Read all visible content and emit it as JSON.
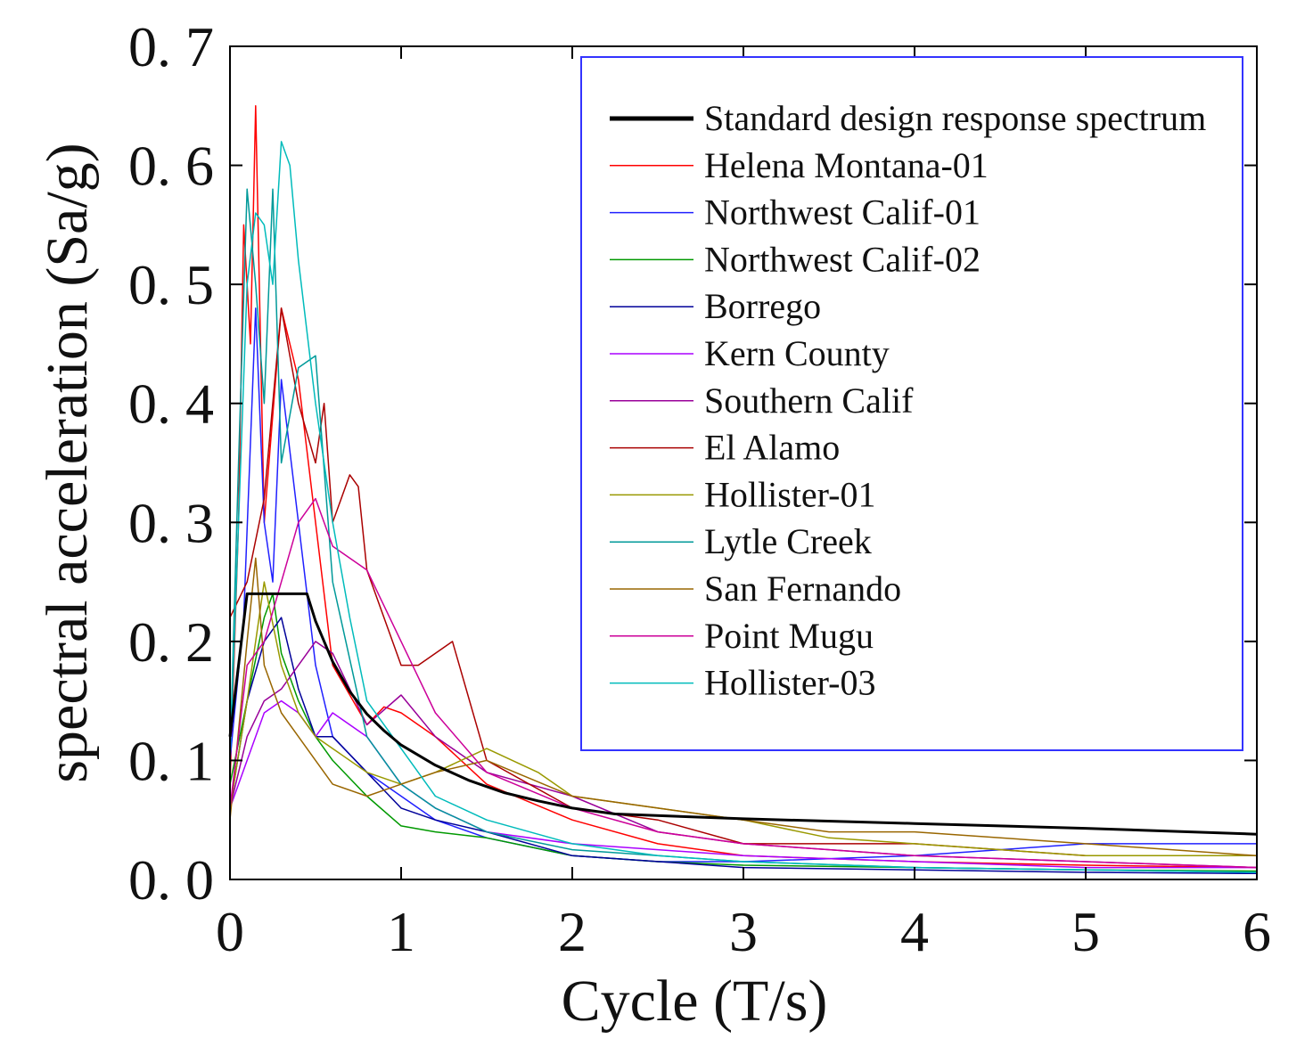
{
  "chart_data": {
    "type": "line",
    "title": "",
    "xlabel": "Cycle (T/s)",
    "ylabel": "spectral acceleration (Sa/g)",
    "xlim": [
      0,
      6
    ],
    "ylim": [
      0,
      0.7
    ],
    "xticks": [
      0,
      1,
      2,
      3,
      4,
      5,
      6
    ],
    "xtick_labels": [
      "0",
      "1",
      "2",
      "3",
      "4",
      "5",
      "6"
    ],
    "yticks": [
      0,
      0.1,
      0.2,
      0.3,
      0.4,
      0.5,
      0.6,
      0.7
    ],
    "ytick_labels": [
      "0. 0",
      "0. 1",
      "0. 2",
      "0. 3",
      "0. 4",
      "0. 5",
      "0. 6",
      "0. 7"
    ],
    "grid": false,
    "legend_position": "top-right",
    "series": [
      {
        "name": "Standard design response spectrum",
        "color": "#000000",
        "width": 3,
        "x": [
          0,
          0.1,
          0.45,
          0.5,
          0.6,
          0.7,
          0.8,
          0.9,
          1.0,
          1.2,
          1.4,
          1.6,
          1.8,
          2.0,
          2.25,
          3,
          4,
          5,
          6
        ],
        "y": [
          0.12,
          0.24,
          0.24,
          0.217,
          0.183,
          0.158,
          0.139,
          0.125,
          0.113,
          0.096,
          0.083,
          0.073,
          0.066,
          0.06,
          0.055,
          0.051,
          0.047,
          0.043,
          0.038
        ]
      },
      {
        "name": "Helena Montana-01",
        "color": "#ff0000",
        "width": 1.5,
        "x": [
          0,
          0.05,
          0.08,
          0.12,
          0.15,
          0.2,
          0.3,
          0.4,
          0.5,
          0.6,
          0.8,
          0.9,
          1.0,
          1.2,
          1.5,
          2,
          2.5,
          3,
          4,
          5,
          6
        ],
        "y": [
          0.08,
          0.3,
          0.55,
          0.45,
          0.65,
          0.3,
          0.48,
          0.42,
          0.3,
          0.18,
          0.13,
          0.145,
          0.14,
          0.12,
          0.08,
          0.05,
          0.03,
          0.02,
          0.015,
          0.012,
          0.01
        ]
      },
      {
        "name": "Northwest Calif-01",
        "color": "#2020ff",
        "width": 1.5,
        "x": [
          0,
          0.08,
          0.15,
          0.2,
          0.25,
          0.3,
          0.4,
          0.5,
          0.6,
          0.8,
          1.0,
          1.2,
          1.5,
          2,
          2.5,
          3,
          4,
          5,
          6
        ],
        "y": [
          0.1,
          0.22,
          0.48,
          0.3,
          0.25,
          0.42,
          0.3,
          0.18,
          0.12,
          0.09,
          0.07,
          0.05,
          0.035,
          0.02,
          0.015,
          0.015,
          0.02,
          0.03,
          0.03
        ]
      },
      {
        "name": "Northwest Calif-02",
        "color": "#009900",
        "width": 1.5,
        "x": [
          0,
          0.1,
          0.2,
          0.25,
          0.3,
          0.4,
          0.5,
          0.6,
          0.8,
          1.0,
          1.2,
          1.5,
          2,
          2.5,
          3,
          4,
          5,
          6
        ],
        "y": [
          0.08,
          0.15,
          0.22,
          0.24,
          0.19,
          0.15,
          0.12,
          0.1,
          0.07,
          0.045,
          0.04,
          0.035,
          0.02,
          0.015,
          0.012,
          0.01,
          0.008,
          0.007
        ]
      },
      {
        "name": "Borrego",
        "color": "#000099",
        "width": 1.5,
        "x": [
          0,
          0.1,
          0.2,
          0.3,
          0.4,
          0.5,
          0.6,
          0.8,
          1.0,
          1.2,
          1.5,
          2,
          3,
          4,
          5,
          6
        ],
        "y": [
          0.06,
          0.15,
          0.2,
          0.22,
          0.16,
          0.12,
          0.12,
          0.09,
          0.06,
          0.05,
          0.04,
          0.02,
          0.01,
          0.008,
          0.006,
          0.005
        ]
      },
      {
        "name": "Kern County",
        "color": "#aa00ff",
        "width": 1.5,
        "x": [
          0,
          0.1,
          0.2,
          0.3,
          0.4,
          0.5,
          0.6,
          0.8,
          1.0,
          1.2,
          1.5,
          2,
          3,
          4,
          5,
          6
        ],
        "y": [
          0.06,
          0.1,
          0.14,
          0.15,
          0.14,
          0.12,
          0.14,
          0.12,
          0.08,
          0.06,
          0.04,
          0.03,
          0.02,
          0.015,
          0.01,
          0.01
        ]
      },
      {
        "name": "Southern Calif",
        "color": "#990099",
        "width": 1.5,
        "x": [
          0,
          0.1,
          0.2,
          0.3,
          0.4,
          0.5,
          0.6,
          0.8,
          1.0,
          1.2,
          1.5,
          2,
          2.5,
          3,
          4,
          5,
          6
        ],
        "y": [
          0.06,
          0.12,
          0.15,
          0.16,
          0.18,
          0.2,
          0.19,
          0.13,
          0.155,
          0.12,
          0.09,
          0.07,
          0.04,
          0.03,
          0.02,
          0.015,
          0.01
        ]
      },
      {
        "name": "El Alamo",
        "color": "#aa0000",
        "width": 1.5,
        "x": [
          0,
          0.1,
          0.2,
          0.3,
          0.4,
          0.5,
          0.55,
          0.6,
          0.7,
          0.75,
          0.8,
          1.0,
          1.1,
          1.3,
          1.5,
          2,
          2.5,
          3,
          4,
          5,
          6
        ],
        "y": [
          0.22,
          0.25,
          0.32,
          0.48,
          0.4,
          0.35,
          0.4,
          0.3,
          0.34,
          0.33,
          0.26,
          0.18,
          0.18,
          0.2,
          0.1,
          0.06,
          0.05,
          0.03,
          0.03,
          0.02,
          0.02
        ]
      },
      {
        "name": "Hollister-01",
        "color": "#999900",
        "width": 1.5,
        "x": [
          0,
          0.1,
          0.2,
          0.3,
          0.4,
          0.5,
          0.6,
          0.8,
          1.0,
          1.2,
          1.5,
          1.8,
          2,
          2.5,
          3,
          3.5,
          4,
          5,
          6
        ],
        "y": [
          0.06,
          0.15,
          0.25,
          0.18,
          0.14,
          0.12,
          0.11,
          0.09,
          0.08,
          0.09,
          0.11,
          0.09,
          0.07,
          0.06,
          0.05,
          0.035,
          0.03,
          0.02,
          0.02
        ]
      },
      {
        "name": "Lytle Creek",
        "color": "#009999",
        "width": 1.5,
        "x": [
          0,
          0.05,
          0.1,
          0.15,
          0.2,
          0.25,
          0.3,
          0.4,
          0.5,
          0.6,
          0.8,
          1.0,
          1.2,
          1.5,
          2,
          2.5,
          3,
          4,
          5,
          6
        ],
        "y": [
          0.1,
          0.35,
          0.58,
          0.5,
          0.4,
          0.58,
          0.35,
          0.43,
          0.44,
          0.25,
          0.12,
          0.08,
          0.06,
          0.04,
          0.025,
          0.02,
          0.015,
          0.01,
          0.008,
          0.006
        ]
      },
      {
        "name": "San Fernando",
        "color": "#996600",
        "width": 1.5,
        "x": [
          0,
          0.1,
          0.15,
          0.2,
          0.3,
          0.4,
          0.5,
          0.6,
          0.8,
          1.0,
          1.2,
          1.5,
          2,
          2.5,
          3,
          3.5,
          4,
          5,
          6
        ],
        "y": [
          0.05,
          0.2,
          0.27,
          0.18,
          0.14,
          0.12,
          0.1,
          0.08,
          0.07,
          0.08,
          0.09,
          0.1,
          0.07,
          0.06,
          0.05,
          0.04,
          0.04,
          0.03,
          0.02
        ]
      },
      {
        "name": "Point Mugu",
        "color": "#cc0099",
        "width": 1.5,
        "x": [
          0,
          0.1,
          0.2,
          0.3,
          0.4,
          0.5,
          0.6,
          0.7,
          0.8,
          0.9,
          1.0,
          1.2,
          1.5,
          2,
          2.5,
          3,
          4,
          5,
          6
        ],
        "y": [
          0.06,
          0.18,
          0.2,
          0.25,
          0.3,
          0.32,
          0.28,
          0.27,
          0.26,
          0.23,
          0.2,
          0.14,
          0.09,
          0.06,
          0.04,
          0.03,
          0.02,
          0.015,
          0.01
        ]
      },
      {
        "name": "Hollister-03",
        "color": "#00bbbb",
        "width": 1.5,
        "x": [
          0,
          0.05,
          0.1,
          0.15,
          0.2,
          0.25,
          0.3,
          0.35,
          0.4,
          0.5,
          0.6,
          0.7,
          0.8,
          1.0,
          1.2,
          1.5,
          2,
          2.5,
          3,
          4,
          5,
          6
        ],
        "y": [
          0.1,
          0.3,
          0.5,
          0.56,
          0.55,
          0.5,
          0.62,
          0.6,
          0.52,
          0.4,
          0.3,
          0.22,
          0.15,
          0.11,
          0.07,
          0.05,
          0.03,
          0.02,
          0.015,
          0.01,
          0.008,
          0.006
        ]
      }
    ]
  }
}
